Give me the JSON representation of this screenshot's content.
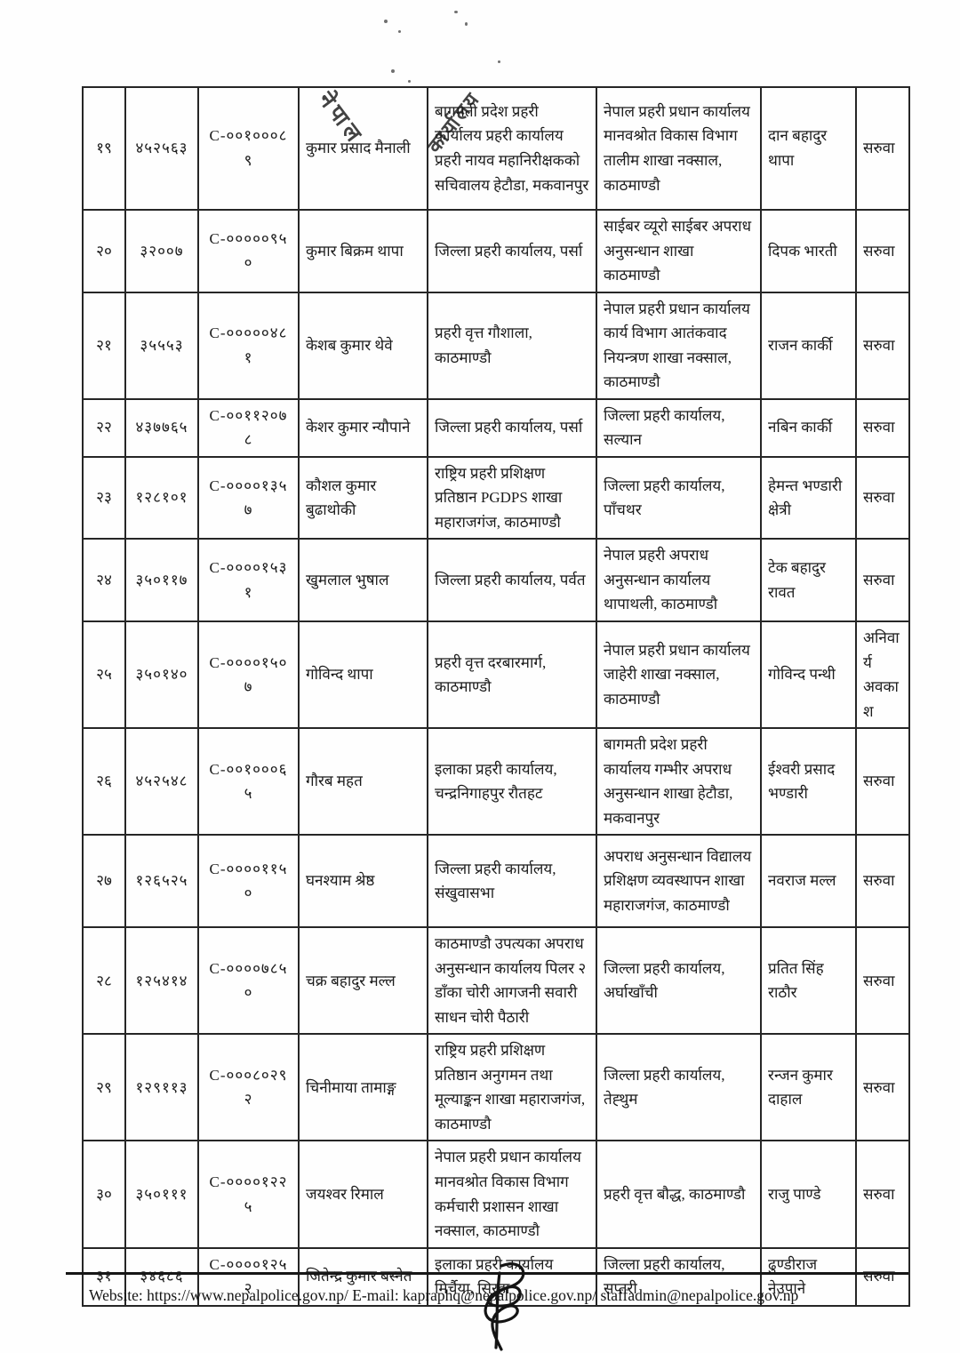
{
  "stamp": {
    "word_left": "नेपाल",
    "word_right": "कार्यालय"
  },
  "table": {
    "rows": [
      {
        "sn": "१९",
        "num": "४५२५६३",
        "code": "C-००१०००८९",
        "name": "कुमार प्रसाद मैनाली",
        "from": "बागमती प्रदेश प्रहरी कार्यालय प्रहरी कार्यालय प्रहरी नायव महानिरीक्षकको सचिवालय हेटौडा, मकवानपुर",
        "to": "नेपाल प्रहरी प्रधान कार्यालय मानवश्रोत विकास विभाग तालीम शाखा नक्साल, काठमाण्डौ",
        "replacement": "दान बहादुर थापा",
        "remark": "सरुवा"
      },
      {
        "sn": "२०",
        "num": "३२००७",
        "code": "C-०००००९५०",
        "name": "कुमार बिक्रम थापा",
        "from": "जिल्ला प्रहरी कार्यालय, पर्सा",
        "to": "साईबर व्यूरो साईबर अपराध अनुसन्धान शाखा काठमाण्डौ",
        "replacement": "दिपक भारती",
        "remark": "सरुवा"
      },
      {
        "sn": "२१",
        "num": "३५५५३",
        "code": "C-०००००४८१",
        "name": "केशब कुमार थेवे",
        "from": "प्रहरी वृत्त गौशाला, काठमाण्डौ",
        "to": "नेपाल प्रहरी प्रधान कार्यालय कार्य  विभाग आतंकवाद नियन्त्रण शाखा नक्साल, काठमाण्डौ",
        "replacement": "राजन कार्की",
        "remark": "सरुवा"
      },
      {
        "sn": "२२",
        "num": "४३७७६५",
        "code": "C-००११२०७८",
        "name": "केशर कुमार न्यौपाने",
        "from": "जिल्ला प्रहरी कार्यालय, पर्सा",
        "to": "जिल्ला प्रहरी कार्यालय, सल्यान",
        "replacement": "नबिन कार्की",
        "remark": "सरुवा"
      },
      {
        "sn": "२३",
        "num": "१२८१०१",
        "code": "C-००००१३५७",
        "name": "कौशल कुमार बुढाथोकी",
        "from": "राष्ट्रिय प्रहरी प्रशिक्षण प्रतिष्ठान PGDPS शाखा महाराजगंज, काठमाण्डौ",
        "to": "जिल्ला प्रहरी कार्यालय, पाँचथर",
        "replacement": "हेमन्त भण्डारी क्षेत्री",
        "remark": "सरुवा"
      },
      {
        "sn": "२४",
        "num": "३५०११७",
        "code": "C-००००१५३१",
        "name": "खुमलाल भुषाल",
        "from": "जिल्ला प्रहरी कार्यालय, पर्वत",
        "to": "नेपाल प्रहरी अपराध अनुसन्धान कार्यालय थापाथली, काठमाण्डौ",
        "replacement": "टेक बहादुर रावत",
        "remark": "सरुवा"
      },
      {
        "sn": "२५",
        "num": "३५०१४०",
        "code": "C-००००१५०७",
        "name": "गोविन्द थापा",
        "from": "प्रहरी वृत्त दरबारमार्ग, काठमाण्डौ",
        "to": "नेपाल प्रहरी प्रधान कार्यालय जाहेरी शाखा नक्साल, काठमाण्डौ",
        "replacement": "गोविन्द पन्थी",
        "remark": "अनिवार्य अवकाश"
      },
      {
        "sn": "२६",
        "num": "४५२५४८",
        "code": "C-००१०००६५",
        "name": "गौरब महत",
        "from": "इलाका प्रहरी कार्यालय, चन्द्रनिगाहपुर रौतहट",
        "to": "बागमती प्रदेश प्रहरी कार्यालय गम्भीर अपराध अनुसन्धान शाखा हेटौडा, मकवानपुर",
        "replacement": "ईश्वरी प्रसाद भण्डारी",
        "remark": "सरुवा"
      },
      {
        "sn": "२७",
        "num": "१२६५२५",
        "code": "C-००००११५०",
        "name": "घनश्याम श्रेष्ठ",
        "from": "जिल्ला प्रहरी कार्यालय, संखुवासभा",
        "to": "अपराध अनुसन्धान विद्यालय प्रशिक्षण व्यवस्थापन शाखा महाराजगंज, काठमाण्डौ",
        "replacement": "नवराज मल्ल",
        "remark": "सरुवा"
      },
      {
        "sn": "२८",
        "num": "१२५४१४",
        "code": "C-००००७८५०",
        "name": "चक्र बहादुर मल्ल",
        "from": "काठमाण्डौ उपत्यका अपराध अनुसन्धान कार्यालय पिलर २ डाँका चोरी आगजनी सवारी साधन चोरी पैठारी",
        "to": "जिल्ला प्रहरी कार्यालय, अर्घाखाँची",
        "replacement": "प्रतित सिंह राठौर",
        "remark": "सरुवा"
      },
      {
        "sn": "२९",
        "num": "१२९११३",
        "code": "C-०००८०२९२",
        "name": "चिनीमाया तामाङ्ग",
        "from": "राष्ट्रिय प्रहरी प्रशिक्षण प्रतिष्ठान अनुगमन तथा मूल्याङ्कन शाखा महाराजगंज, काठमाण्डौ",
        "to": "जिल्ला प्रहरी कार्यालय, तेह्थुम",
        "replacement": "रन्जन कुमार दाहाल",
        "remark": "सरुवा"
      },
      {
        "sn": "३०",
        "num": "३५०१११",
        "code": "C-००००१२२५",
        "name": "जयश्वर रिमाल",
        "from": "नेपाल प्रहरी प्रधान कार्यालय मानवश्रोत विकास विभाग कर्मचारी प्रशासन शाखा नक्साल, काठमाण्डौ",
        "to": "प्रहरी वृत्त बौद्ध, काठमाण्डौ",
        "replacement": "राजु पाण्डे",
        "remark": "सरुवा"
      },
      {
        "sn": "३१",
        "num": "३४६८६",
        "code": "C-००००१२५२",
        "name": "जितेन्द्र कुमार बस्नेत",
        "from": "इलाका प्रहरी कार्यालय मिर्चैया, सिरहा",
        "to": "जिल्ला प्रहरी कार्यालय, सप्तरी",
        "replacement": "ढुण्डीराज नेउपाने",
        "remark": "सरुवा"
      }
    ]
  },
  "footer": {
    "contact_line": "Website: https://www.nepalpolice.gov.np/ E-mail: kapraphq@nepalpolice.gov.np/ staffadmin@nepalpolice.gov.np"
  }
}
